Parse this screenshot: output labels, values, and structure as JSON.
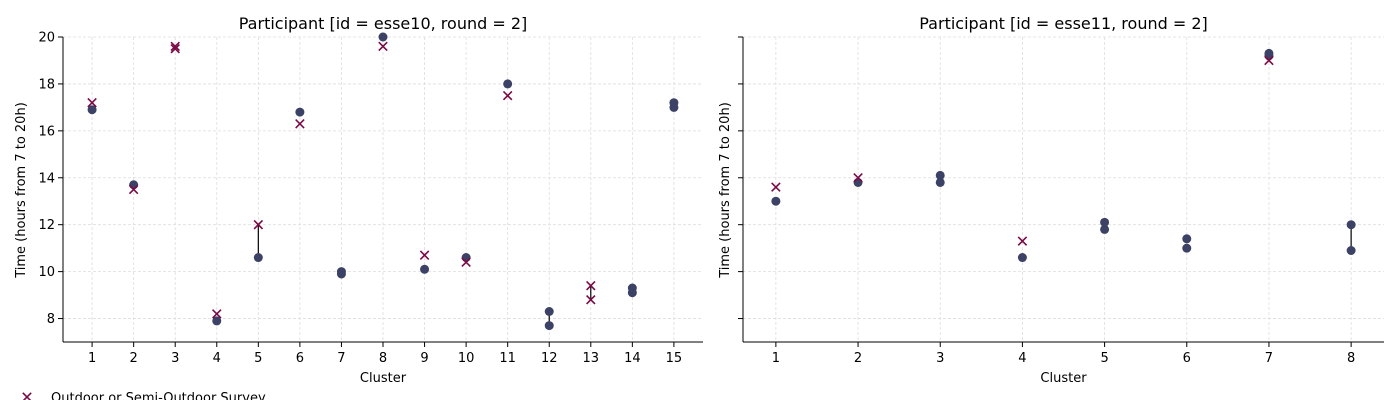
{
  "chart_data": [
    {
      "type": "scatter",
      "title": "Participant [id = esse10, round = 2]",
      "xlabel": "Cluster",
      "ylabel": "Time (hours from 7 to 20h)",
      "xlim": [
        0.3,
        15.7
      ],
      "ylim": [
        7,
        20
      ],
      "xticks": [
        1,
        2,
        3,
        4,
        5,
        6,
        7,
        8,
        9,
        10,
        11,
        12,
        13,
        14,
        15
      ],
      "yticks": [
        8,
        10,
        12,
        14,
        16,
        18,
        20
      ],
      "grid": true,
      "series": [
        {
          "name": "Outdoor or Semi-Outdoor Survey",
          "marker": "x",
          "color": "#7a0a45",
          "points": [
            [
              1,
              17.2
            ],
            [
              2,
              13.5
            ],
            [
              3,
              19.6
            ],
            [
              3,
              19.5
            ],
            [
              4,
              8.2
            ],
            [
              5,
              12.0
            ],
            [
              6,
              16.3
            ],
            [
              8,
              19.6
            ],
            [
              9,
              10.7
            ],
            [
              10,
              10.4
            ],
            [
              11,
              17.5
            ],
            [
              13,
              9.4
            ],
            [
              13,
              8.8
            ]
          ]
        },
        {
          "marker": "o",
          "color": "#3c4266",
          "points": [
            [
              1,
              16.9
            ],
            [
              2,
              13.7
            ],
            [
              4,
              7.9
            ],
            [
              5,
              10.6
            ],
            [
              6,
              16.8
            ],
            [
              7,
              10.0
            ],
            [
              7,
              9.9
            ],
            [
              8,
              20.0
            ],
            [
              9,
              10.1
            ],
            [
              10,
              10.6
            ],
            [
              11,
              18.0
            ],
            [
              12,
              8.3
            ],
            [
              12,
              7.7
            ],
            [
              14,
              9.3
            ],
            [
              14,
              9.1
            ],
            [
              15,
              17.2
            ],
            [
              15,
              17.0
            ]
          ]
        }
      ],
      "connectors": [
        [
          5,
          10.6,
          12.0
        ],
        [
          12,
          7.7,
          8.3
        ],
        [
          13,
          8.8,
          9.4
        ]
      ]
    },
    {
      "type": "scatter",
      "title": "Participant [id = esse11, round = 2]",
      "xlabel": "Cluster",
      "ylabel": "Time (hours from 7 to 20h)",
      "xlim": [
        0.6,
        8.4
      ],
      "ylim": [
        7,
        20
      ],
      "xticks": [
        1,
        2,
        3,
        4,
        5,
        6,
        7,
        8
      ],
      "yticks": [
        8,
        10,
        12,
        14,
        16,
        18,
        20
      ],
      "grid": true,
      "series": [
        {
          "name": "Outdoor or Semi-Outdoor Survey",
          "marker": "x",
          "color": "#7a0a45",
          "points": [
            [
              1,
              13.6
            ],
            [
              2,
              14.0
            ],
            [
              4,
              11.3
            ],
            [
              7,
              19.0
            ]
          ]
        },
        {
          "marker": "o",
          "color": "#3c4266",
          "points": [
            [
              1,
              13.0
            ],
            [
              2,
              13.8
            ],
            [
              3,
              14.1
            ],
            [
              3,
              13.8
            ],
            [
              4,
              10.6
            ],
            [
              5,
              12.1
            ],
            [
              5,
              11.8
            ],
            [
              6,
              11.4
            ],
            [
              6,
              11.0
            ],
            [
              7,
              19.3
            ],
            [
              7,
              19.2
            ],
            [
              8,
              12.0
            ],
            [
              8,
              10.9
            ]
          ]
        }
      ],
      "connectors": [
        [
          8,
          10.9,
          12.0
        ]
      ]
    }
  ],
  "legend": {
    "label": "Outdoor or Semi-Outdoor Survey",
    "marker": "x",
    "color": "#7a0a45",
    "placement": "bottom-left"
  },
  "colors": {
    "grid": "#dddddd",
    "axis": "#000000",
    "connector": "#000000"
  }
}
